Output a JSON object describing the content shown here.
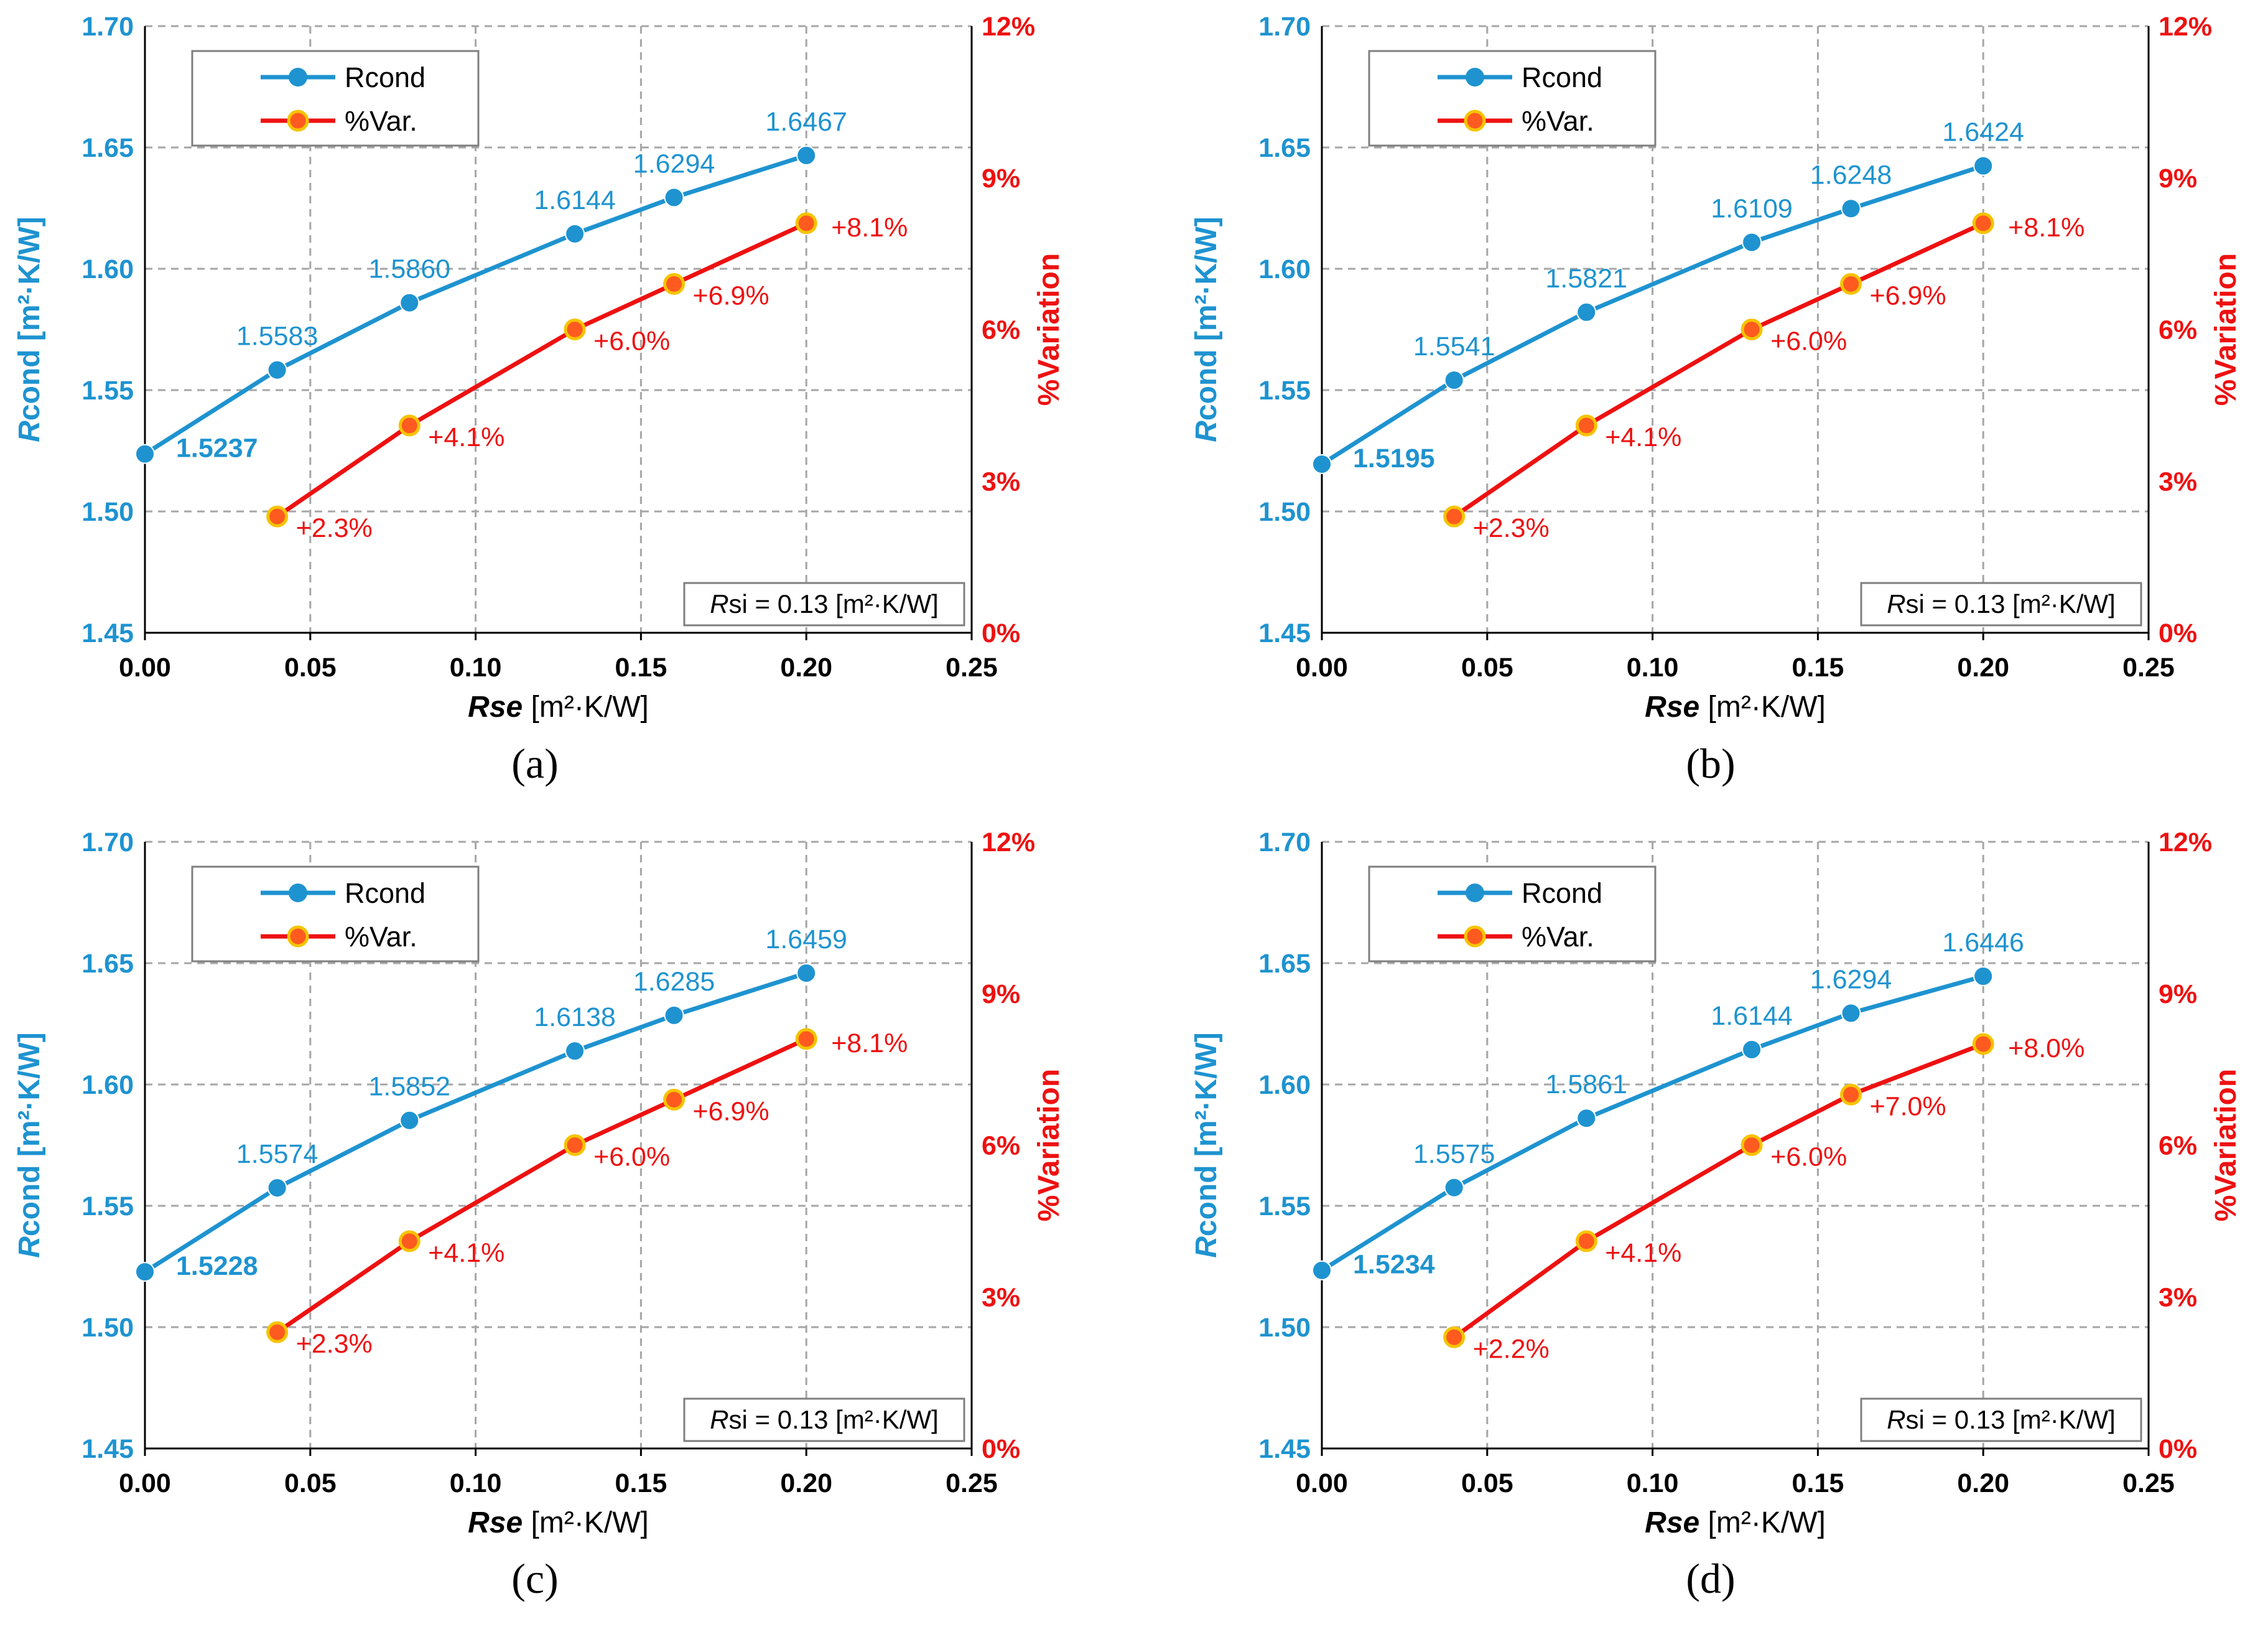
{
  "colors": {
    "blue": "#1e93d0",
    "red": "#ee1111",
    "grid": "#a6a6a6",
    "axis": "#000000",
    "text": "#000000"
  },
  "common": {
    "x_label_bold": "Rse",
    "x_label_rest": " [m²·K/W]",
    "y_left_label_bold": "R",
    "y_left_label_rest": "cond [m²·K/W]",
    "y_right_label": "%Variation",
    "note_italic": "R",
    "note_rest": "si = 0.13 [m²·K/W]",
    "legend_rcond": "Rcond",
    "legend_var": "%Var.",
    "x_ticks": [
      "0.00",
      "0.05",
      "0.10",
      "0.15",
      "0.20",
      "0.25"
    ],
    "y_left_ticks": [
      "1.45",
      "1.50",
      "1.55",
      "1.60",
      "1.65",
      "1.70"
    ],
    "y_right_ticks": [
      "0%",
      "3%",
      "6%",
      "9%",
      "12%"
    ]
  },
  "chart_data": [
    {
      "type": "line",
      "caption": "(a)",
      "x": [
        0,
        0.04,
        0.08,
        0.13,
        0.16,
        0.2
      ],
      "xlim": [
        0,
        0.25
      ],
      "ylim": [
        1.45,
        1.7
      ],
      "y2lim": [
        0,
        12
      ],
      "series": [
        {
          "name": "Rcond",
          "axis": "left",
          "x": [
            0,
            0.04,
            0.08,
            0.13,
            0.16,
            0.2
          ],
          "values": [
            1.5237,
            1.5583,
            1.586,
            1.6144,
            1.6294,
            1.6467
          ],
          "labels": [
            "1.5237",
            "1.5583",
            "1.5860",
            "1.6144",
            "1.6294",
            "1.6467"
          ]
        },
        {
          "name": "%Var.",
          "axis": "right",
          "x": [
            0.04,
            0.08,
            0.13,
            0.16,
            0.2
          ],
          "values": [
            2.3,
            4.1,
            6.0,
            6.9,
            8.1
          ],
          "labels": [
            "+2.3%",
            "+4.1%",
            "+6.0%",
            "+6.9%",
            "+8.1%"
          ]
        }
      ]
    },
    {
      "type": "line",
      "caption": "(b)",
      "x": [
        0,
        0.04,
        0.08,
        0.13,
        0.16,
        0.2
      ],
      "xlim": [
        0,
        0.25
      ],
      "ylim": [
        1.45,
        1.7
      ],
      "y2lim": [
        0,
        12
      ],
      "series": [
        {
          "name": "Rcond",
          "axis": "left",
          "x": [
            0,
            0.04,
            0.08,
            0.13,
            0.16,
            0.2
          ],
          "values": [
            1.5195,
            1.5541,
            1.5821,
            1.6109,
            1.6248,
            1.6424
          ],
          "labels": [
            "1.5195",
            "1.5541",
            "1.5821",
            "1.6109",
            "1.6248",
            "1.6424"
          ]
        },
        {
          "name": "%Var.",
          "axis": "right",
          "x": [
            0.04,
            0.08,
            0.13,
            0.16,
            0.2
          ],
          "values": [
            2.3,
            4.1,
            6.0,
            6.9,
            8.1
          ],
          "labels": [
            "+2.3%",
            "+4.1%",
            "+6.0%",
            "+6.9%",
            "+8.1%"
          ]
        }
      ]
    },
    {
      "type": "line",
      "caption": "(c)",
      "x": [
        0,
        0.04,
        0.08,
        0.13,
        0.16,
        0.2
      ],
      "xlim": [
        0,
        0.25
      ],
      "ylim": [
        1.45,
        1.7
      ],
      "y2lim": [
        0,
        12
      ],
      "series": [
        {
          "name": "Rcond",
          "axis": "left",
          "x": [
            0,
            0.04,
            0.08,
            0.13,
            0.16,
            0.2
          ],
          "values": [
            1.5228,
            1.5574,
            1.5852,
            1.6138,
            1.6285,
            1.6459
          ],
          "labels": [
            "1.5228",
            "1.5574",
            "1.5852",
            "1.6138",
            "1.6285",
            "1.6459"
          ]
        },
        {
          "name": "%Var.",
          "axis": "right",
          "x": [
            0.04,
            0.08,
            0.13,
            0.16,
            0.2
          ],
          "values": [
            2.3,
            4.1,
            6.0,
            6.9,
            8.1
          ],
          "labels": [
            "+2.3%",
            "+4.1%",
            "+6.0%",
            "+6.9%",
            "+8.1%"
          ]
        }
      ]
    },
    {
      "type": "line",
      "caption": "(d)",
      "x": [
        0,
        0.04,
        0.08,
        0.13,
        0.16,
        0.2
      ],
      "xlim": [
        0,
        0.25
      ],
      "ylim": [
        1.45,
        1.7
      ],
      "y2lim": [
        0,
        12
      ],
      "series": [
        {
          "name": "Rcond",
          "axis": "left",
          "x": [
            0,
            0.04,
            0.08,
            0.13,
            0.16,
            0.2
          ],
          "values": [
            1.5234,
            1.5575,
            1.5861,
            1.6144,
            1.6294,
            1.6446
          ],
          "labels": [
            "1.5234",
            "1.5575",
            "1.5861",
            "1.6144",
            "1.6294",
            "1.6446"
          ]
        },
        {
          "name": "%Var.",
          "axis": "right",
          "x": [
            0.04,
            0.08,
            0.13,
            0.16,
            0.2
          ],
          "values": [
            2.2,
            4.1,
            6.0,
            7.0,
            8.0
          ],
          "labels": [
            "+2.2%",
            "+4.1%",
            "+6.0%",
            "+7.0%",
            "+8.0%"
          ]
        }
      ]
    }
  ]
}
